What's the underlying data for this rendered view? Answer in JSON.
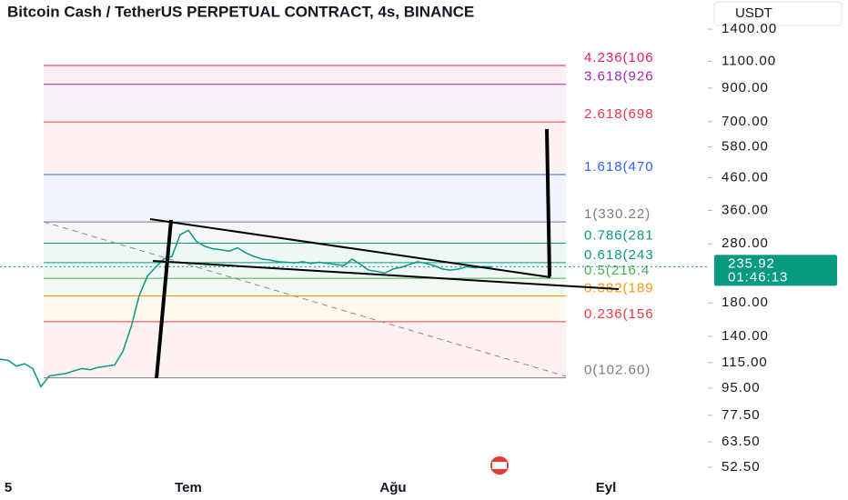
{
  "chart_data": {
    "type": "line",
    "title": "Bitcoin Cash / TetherUS PERPETUAL CONTRACT, 4s, BINANCE",
    "currency": "USDT",
    "log_scale": true,
    "color": "#089981",
    "ylim": [
      49.7,
      1742
    ],
    "yticks": [
      {
        "value": 1400,
        "label": "1400.00"
      },
      {
        "value": 1100,
        "label": "1100.00"
      },
      {
        "value": 900,
        "label": "900.00"
      },
      {
        "value": 700,
        "label": "700.00"
      },
      {
        "value": 580,
        "label": "580.00"
      },
      {
        "value": 460,
        "label": "460.00"
      },
      {
        "value": 360,
        "label": "360.00"
      },
      {
        "value": 280,
        "label": "280.00"
      },
      {
        "value": 180,
        "label": "180.00"
      },
      {
        "value": 140,
        "label": "140.00"
      },
      {
        "value": 115,
        "label": "115.00"
      },
      {
        "value": 95,
        "label": "95.00"
      },
      {
        "value": 77.5,
        "label": "77.50"
      },
      {
        "value": 63.5,
        "label": "63.50"
      },
      {
        "value": 52.5,
        "label": "52.50"
      }
    ],
    "categories": [
      null,
      "5",
      null,
      null,
      null,
      null,
      null,
      null,
      null,
      null,
      null,
      null,
      null,
      null,
      null,
      null,
      null,
      null,
      null,
      null,
      null,
      null,
      null,
      "Tem",
      null,
      null,
      null,
      null,
      null,
      null,
      null,
      null,
      null,
      null,
      null,
      null,
      null,
      null,
      null,
      null,
      null,
      null,
      null,
      null,
      null,
      null,
      null,
      null,
      "Ağu",
      null,
      null,
      null,
      null,
      null,
      null,
      null,
      null,
      null,
      null,
      null,
      null,
      null,
      null,
      null,
      null,
      null,
      null,
      null,
      null,
      null,
      null,
      null,
      null,
      null,
      "Eyl",
      null
    ],
    "values": [
      118,
      117,
      112,
      114,
      110,
      96,
      104,
      105,
      106,
      108,
      110,
      109,
      111,
      112,
      113,
      125,
      150,
      190,
      220,
      235,
      250,
      255,
      300,
      310,
      285,
      275,
      270,
      268,
      265,
      272,
      262,
      255,
      250,
      248,
      245,
      244,
      243,
      245,
      242,
      244,
      242,
      240,
      238,
      250,
      240,
      230,
      228,
      225,
      232,
      235,
      240,
      245,
      242,
      238,
      232,
      230,
      232,
      236,
      234,
      236,
      236,
      null,
      null,
      null,
      null,
      null,
      null,
      null,
      null,
      null,
      null,
      null,
      null,
      null,
      null,
      null
    ],
    "last_price": {
      "value": 235.92,
      "label": "235.92"
    },
    "countdown": "01:46:13",
    "fib_levels": [
      {
        "label": "4.236(106",
        "price": 1066.8,
        "color": "#e91e63"
      },
      {
        "label": "3.618(926",
        "price": 926.1,
        "color": "#9c27b0"
      },
      {
        "label": "2.618(698",
        "price": 698.5,
        "color": "#f23645"
      },
      {
        "label": "1.618(470",
        "price": 470.9,
        "color": "#2962ff"
      },
      {
        "label": "1(330.22)",
        "price": 330.22,
        "color": "#787b86"
      },
      {
        "label": "0.786(281",
        "price": 281.5,
        "color": "#089981"
      },
      {
        "label": "0.618(243",
        "price": 243.3,
        "color": "#089981"
      },
      {
        "label": "0.5(216.4",
        "price": 216.4,
        "color": "#4caf50"
      },
      {
        "label": "0.382(189",
        "price": 189.6,
        "color": "#ff9800"
      },
      {
        "label": "0.236(156",
        "price": 156.3,
        "color": "#f23645"
      },
      {
        "label": "0(102.60)",
        "price": 102.6,
        "color": "#787b86"
      }
    ]
  }
}
